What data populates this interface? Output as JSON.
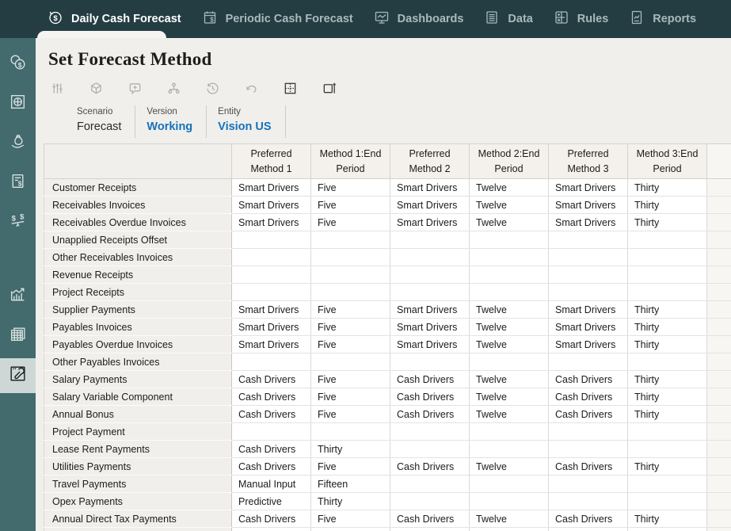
{
  "colors": {
    "nav_bg": "#243d43",
    "nav_active_text": "#ffffff",
    "nav_inactive_text": "#a8babc",
    "sidebar_bg": "#436a6d",
    "sidebar_active_bg": "#cdd8d6",
    "content_bg": "#f1efec",
    "accent_blue": "#1672ba",
    "header_cell_bg": "#f4f1ed",
    "row_label_bg": "#f1efeb",
    "data_cell_bg": "#ffffff"
  },
  "nav": {
    "items": [
      {
        "label": "Daily Cash Forecast",
        "icon": "daily-cash-forecast-icon",
        "active": true
      },
      {
        "label": "Periodic Cash Forecast",
        "icon": "periodic-cash-forecast-icon",
        "active": false
      },
      {
        "label": "Dashboards",
        "icon": "dashboards-icon",
        "active": false
      },
      {
        "label": "Data",
        "icon": "data-icon",
        "active": false
      },
      {
        "label": "Rules",
        "icon": "rules-icon",
        "active": false
      },
      {
        "label": "Reports",
        "icon": "reports-icon",
        "active": false
      }
    ]
  },
  "sidebar": {
    "items": [
      {
        "icon": "coins-icon",
        "active": false
      },
      {
        "icon": "target-box-icon",
        "active": false
      },
      {
        "icon": "cash-hand-icon",
        "active": false
      },
      {
        "icon": "invoice-icon",
        "active": false
      },
      {
        "icon": "balance-icon",
        "active": false
      },
      {
        "icon": "trend-chart-icon",
        "active": false
      },
      {
        "icon": "grid-stack-icon",
        "active": false
      },
      {
        "icon": "wrench-box-icon",
        "active": true
      }
    ]
  },
  "page": {
    "title": "Set Forecast Method"
  },
  "toolbar": {
    "buttons": [
      {
        "icon": "adjust-sliders-icon",
        "enabled": false
      },
      {
        "icon": "cube-icon",
        "enabled": false
      },
      {
        "icon": "comment-add-icon",
        "enabled": false
      },
      {
        "icon": "hierarchy-icon",
        "enabled": false
      },
      {
        "icon": "history-icon",
        "enabled": false
      },
      {
        "icon": "undo-icon",
        "enabled": false
      },
      {
        "icon": "grid-icon",
        "enabled": true
      },
      {
        "icon": "open-window-icon",
        "enabled": true
      }
    ]
  },
  "pov": {
    "items": [
      {
        "label": "Scenario",
        "value": "Forecast",
        "link": false
      },
      {
        "label": "Version",
        "value": "Working",
        "link": true
      },
      {
        "label": "Entity",
        "value": "Vision US",
        "link": true
      }
    ]
  },
  "grid": {
    "columns": [
      "Preferred Method 1",
      "Method 1:End Period",
      "Preferred Method 2",
      "Method 2:End Period",
      "Preferred Method 3",
      "Method 3:End Period"
    ],
    "rows": [
      {
        "label": "Customer Receipts",
        "cells": [
          "Smart Drivers",
          "Five",
          "Smart Drivers",
          "Twelve",
          "Smart Drivers",
          "Thirty"
        ]
      },
      {
        "label": "Receivables Invoices",
        "cells": [
          "Smart Drivers",
          "Five",
          "Smart Drivers",
          "Twelve",
          "Smart Drivers",
          "Thirty"
        ]
      },
      {
        "label": "Receivables Overdue Invoices",
        "cells": [
          "Smart Drivers",
          "Five",
          "Smart Drivers",
          "Twelve",
          "Smart Drivers",
          "Thirty"
        ]
      },
      {
        "label": "Unapplied Receipts Offset",
        "cells": [
          "",
          "",
          "",
          "",
          "",
          ""
        ]
      },
      {
        "label": "Other Receivables Invoices",
        "cells": [
          "",
          "",
          "",
          "",
          "",
          ""
        ]
      },
      {
        "label": "Revenue Receipts",
        "cells": [
          "",
          "",
          "",
          "",
          "",
          ""
        ]
      },
      {
        "label": "Project Receipts",
        "cells": [
          "",
          "",
          "",
          "",
          "",
          ""
        ]
      },
      {
        "label": "Supplier Payments",
        "cells": [
          "Smart Drivers",
          "Five",
          "Smart Drivers",
          "Twelve",
          "Smart Drivers",
          "Thirty"
        ]
      },
      {
        "label": "Payables Invoices",
        "cells": [
          "Smart Drivers",
          "Five",
          "Smart Drivers",
          "Twelve",
          "Smart Drivers",
          "Thirty"
        ]
      },
      {
        "label": "Payables Overdue Invoices",
        "cells": [
          "Smart Drivers",
          "Five",
          "Smart Drivers",
          "Twelve",
          "Smart Drivers",
          "Thirty"
        ]
      },
      {
        "label": "Other Payables Invoices",
        "cells": [
          "",
          "",
          "",
          "",
          "",
          ""
        ]
      },
      {
        "label": "Salary Payments",
        "cells": [
          "Cash Drivers",
          "Five",
          "Cash Drivers",
          "Twelve",
          "Cash Drivers",
          "Thirty"
        ]
      },
      {
        "label": "Salary Variable Component",
        "cells": [
          "Cash Drivers",
          "Five",
          "Cash Drivers",
          "Twelve",
          "Cash Drivers",
          "Thirty"
        ]
      },
      {
        "label": "Annual Bonus",
        "cells": [
          "Cash Drivers",
          "Five",
          "Cash Drivers",
          "Twelve",
          "Cash Drivers",
          "Thirty"
        ]
      },
      {
        "label": "Project Payment",
        "cells": [
          "",
          "",
          "",
          "",
          "",
          ""
        ]
      },
      {
        "label": "Lease Rent Payments",
        "cells": [
          "Cash Drivers",
          "Thirty",
          "",
          "",
          "",
          ""
        ]
      },
      {
        "label": "Utilities Payments",
        "cells": [
          "Cash Drivers",
          "Five",
          "Cash Drivers",
          "Twelve",
          "Cash Drivers",
          "Thirty"
        ]
      },
      {
        "label": "Travel Payments",
        "cells": [
          "Manual Input",
          "Fifteen",
          "",
          "",
          "",
          ""
        ]
      },
      {
        "label": "Opex Payments",
        "cells": [
          "Predictive",
          "Thirty",
          "",
          "",
          "",
          ""
        ]
      },
      {
        "label": "Annual Direct Tax Payments",
        "cells": [
          "Cash Drivers",
          "Five",
          "Cash Drivers",
          "Twelve",
          "Cash Drivers",
          "Thirty"
        ]
      },
      {
        "label": "",
        "cells": [
          "",
          "",
          "",
          "",
          "",
          ""
        ]
      }
    ]
  }
}
